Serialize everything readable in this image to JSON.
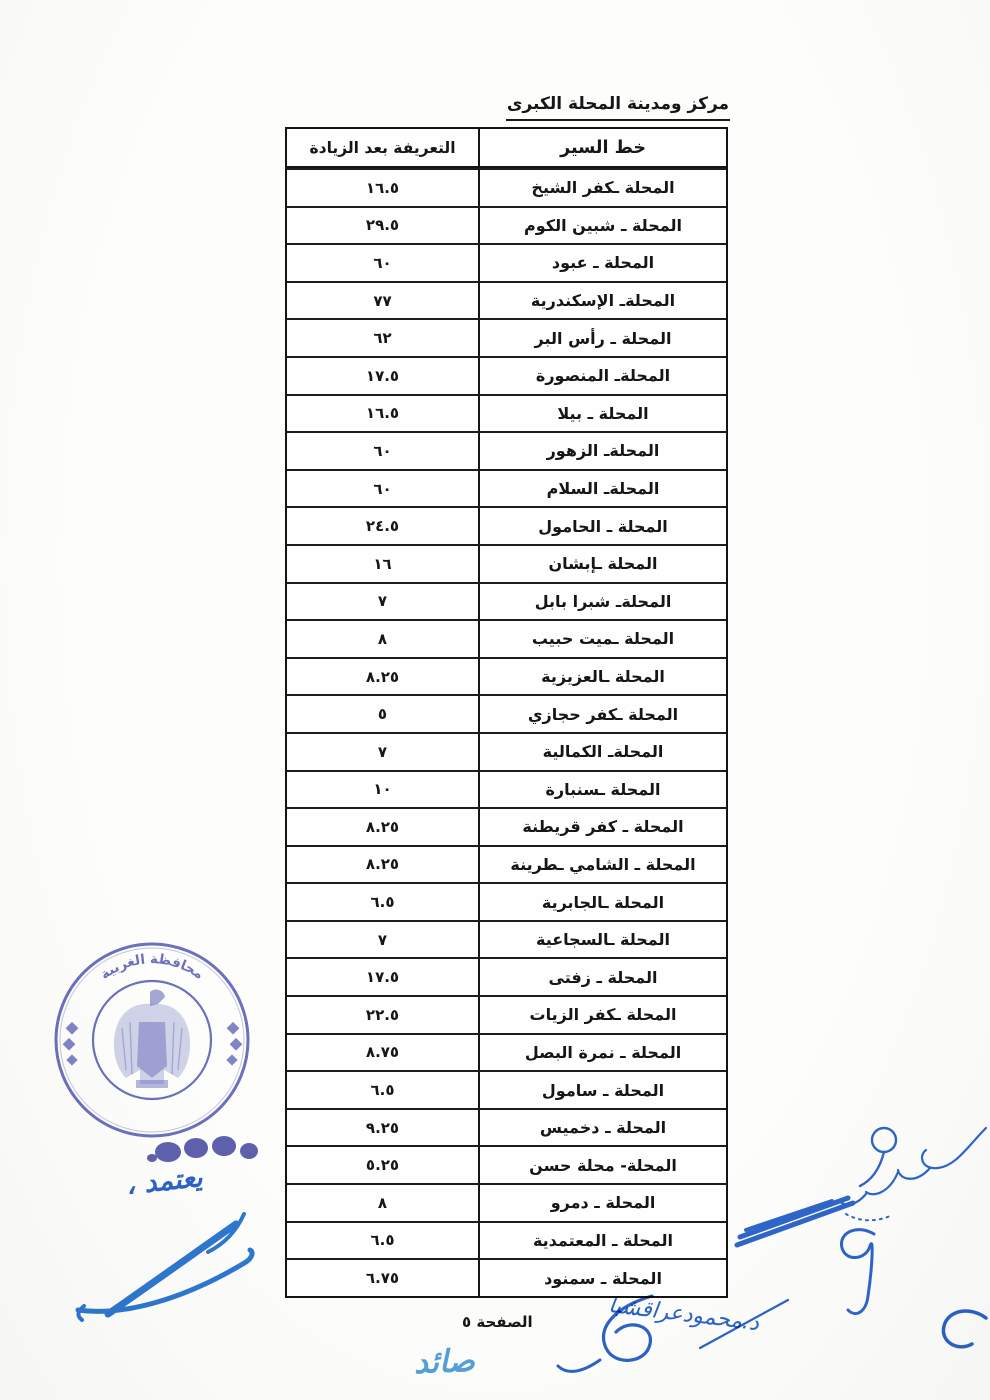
{
  "document": {
    "title": "مركز ومدينة المحلة الكبرى",
    "page_label": "الصفحة ٥",
    "table": {
      "headers": {
        "route": "خط السير",
        "fare": "التعريفة بعد الزيادة"
      },
      "rows": [
        {
          "route": "المحلة ـكفر الشيخ",
          "fare": "١٦.٥"
        },
        {
          "route": "المحلة ـ شبين الكوم",
          "fare": "٢٩.٥"
        },
        {
          "route": "المحلة ـ عبود",
          "fare": "٦٠"
        },
        {
          "route": "المحلةـ الإسكندرية",
          "fare": "٧٧"
        },
        {
          "route": "المحلة ـ رأس البر",
          "fare": "٦٢"
        },
        {
          "route": "المحلةـ المنصورة",
          "fare": "١٧.٥"
        },
        {
          "route": "المحلة ـ بيلا",
          "fare": "١٦.٥"
        },
        {
          "route": "المحلةـ الزهور",
          "fare": "٦٠"
        },
        {
          "route": "المحلةـ السلام",
          "fare": "٦٠"
        },
        {
          "route": "المحلة ـ الحامول",
          "fare": "٢٤.٥"
        },
        {
          "route": "المحلة ـإبشان",
          "fare": "١٦"
        },
        {
          "route": "المحلةـ شبرا بابل",
          "fare": "٧"
        },
        {
          "route": "المحلة ـميت حبيب",
          "fare": "٨"
        },
        {
          "route": "المحلة ـالعزيزية",
          "fare": "٨.٢٥"
        },
        {
          "route": "المحلة ـكفر حجازي",
          "fare": "٥"
        },
        {
          "route": "المحلةـ الكمالية",
          "fare": "٧"
        },
        {
          "route": "المحلة ـسنبارة",
          "fare": "١٠"
        },
        {
          "route": "المحلة ـ كفر قريطنة",
          "fare": "٨.٢٥"
        },
        {
          "route": "المحلة ـ الشامي ـطرينة",
          "fare": "٨.٢٥"
        },
        {
          "route": "المحلة ـالجابرية",
          "fare": "٦.٥"
        },
        {
          "route": "المحلة ـالسجاعية",
          "fare": "٧"
        },
        {
          "route": "المحلة ـ زفتى",
          "fare": "١٧.٥"
        },
        {
          "route": "المحلة ـكفر الزيات",
          "fare": "٢٢.٥"
        },
        {
          "route": "المحلة ـ نمرة البصل",
          "fare": "٨.٧٥"
        },
        {
          "route": "المحلة ـ سامول",
          "fare": "٦.٥"
        },
        {
          "route": "المحلة ـ دخميس",
          "fare": "٩.٢٥"
        },
        {
          "route": "المحلة- محلة حسن",
          "fare": "٥.٢٥"
        },
        {
          "route": "المحلة ـ دمرو",
          "fare": "٨"
        },
        {
          "route": "المحلة ـ المعتمدية",
          "fare": "٦.٥"
        },
        {
          "route": "المحلة ـ سمنود",
          "fare": "٦.٧٥"
        }
      ]
    },
    "stamp": {
      "arc_text": "محافظة الغربية",
      "color": "#4d52b2"
    },
    "annotations": {
      "approved_note": "يعتمد ،",
      "signature_name": "د.محمودعراقشبا",
      "initial": "صائد"
    },
    "colors": {
      "ink": "#161616",
      "signature_blue": "#2e78d2",
      "stamp_blue": "#4d52b2",
      "light_blue": "#56a0dc"
    }
  }
}
